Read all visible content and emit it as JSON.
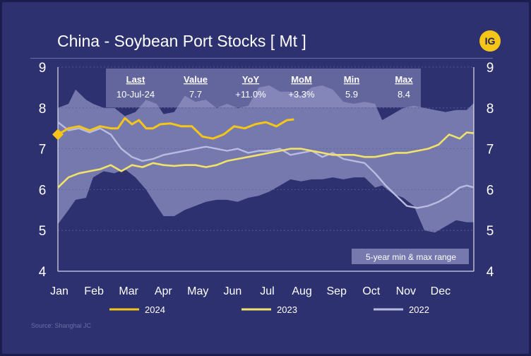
{
  "header": {
    "title": "China - Soybean Port Stocks [ Mt ]",
    "logo_text": "IG"
  },
  "stats": {
    "headers": [
      "Last",
      "Value",
      "YoY",
      "MoM",
      "Min",
      "Max"
    ],
    "values": [
      "10-Jul-24",
      "7.7",
      "+11.0%",
      "+3.3%",
      "5.9",
      "8.4"
    ]
  },
  "range_label": "5-year min & max range",
  "source": "Source: Shanghai JC",
  "colors": {
    "c2024": "#f5c518",
    "c2023": "#f0e26a",
    "c2022": "#b9bce0",
    "band": "#8f92c2",
    "bg": "#2d3170"
  },
  "chart_data": {
    "type": "line",
    "title": "China - Soybean Port Stocks [ Mt ]",
    "ylim": [
      4,
      9
    ],
    "y_ticks": [
      4,
      5,
      6,
      7,
      8,
      9
    ],
    "x_range": [
      0,
      11.8
    ],
    "x_ticks": [
      "Jan",
      "Feb",
      "Mar",
      "Apr",
      "May",
      "Jun",
      "Jul",
      "Aug",
      "Sep",
      "Oct",
      "Nov",
      "Dec"
    ],
    "range_band": {
      "name": "5-year min & max range",
      "x": [
        0,
        0.3,
        0.5,
        0.8,
        1.0,
        1.3,
        1.6,
        1.9,
        2.2,
        2.5,
        2.8,
        3.0,
        3.3,
        3.6,
        3.9,
        4.2,
        4.5,
        4.8,
        5.1,
        5.4,
        5.7,
        6.0,
        6.3,
        6.6,
        6.9,
        7.2,
        7.5,
        7.8,
        8.1,
        8.4,
        8.7,
        9.0,
        9.2,
        9.5,
        9.8,
        10.1,
        10.4,
        10.7,
        11.0,
        11.3,
        11.6,
        11.8
      ],
      "max": [
        8.0,
        8.1,
        8.45,
        8.2,
        8.1,
        8.0,
        8.0,
        7.8,
        7.9,
        8.2,
        8.1,
        7.85,
        7.9,
        8.3,
        8.15,
        8.2,
        8.0,
        8.1,
        8.0,
        8.05,
        8.5,
        8.55,
        8.4,
        8.4,
        8.3,
        8.5,
        8.55,
        8.45,
        8.15,
        8.1,
        8.15,
        8.1,
        7.7,
        7.85,
        8.0,
        8.05,
        8.0,
        7.95,
        7.9,
        7.95,
        7.95,
        8.12
      ],
      "min": [
        5.15,
        5.5,
        5.75,
        5.8,
        6.3,
        6.45,
        6.4,
        6.5,
        6.3,
        6.0,
        5.6,
        5.35,
        5.35,
        5.5,
        5.6,
        5.7,
        5.75,
        5.75,
        5.7,
        5.8,
        5.85,
        5.95,
        6.1,
        6.25,
        6.2,
        6.25,
        6.25,
        6.3,
        6.25,
        6.3,
        6.3,
        6.05,
        6.1,
        5.9,
        5.8,
        5.6,
        5.0,
        4.95,
        5.1,
        5.25,
        5.2,
        5.2
      ]
    },
    "series": [
      {
        "name": "2024",
        "x": [
          0,
          0.3,
          0.6,
          0.9,
          1.2,
          1.5,
          1.7,
          1.9,
          2.1,
          2.3,
          2.5,
          2.7,
          2.9,
          3.2,
          3.5,
          3.8,
          4.1,
          4.4,
          4.7,
          5.0,
          5.3,
          5.6,
          5.9,
          6.2,
          6.5,
          6.7
        ],
        "values": [
          7.35,
          7.5,
          7.55,
          7.45,
          7.55,
          7.5,
          7.5,
          7.75,
          7.6,
          7.7,
          7.5,
          7.5,
          7.6,
          7.62,
          7.55,
          7.55,
          7.3,
          7.25,
          7.35,
          7.55,
          7.5,
          7.6,
          7.65,
          7.55,
          7.7,
          7.72
        ]
      },
      {
        "name": "2023",
        "x": [
          0,
          0.3,
          0.6,
          0.9,
          1.2,
          1.5,
          1.8,
          2.1,
          2.4,
          2.7,
          3.0,
          3.3,
          3.6,
          3.9,
          4.2,
          4.5,
          4.8,
          5.1,
          5.4,
          5.7,
          6.0,
          6.3,
          6.6,
          6.9,
          7.2,
          7.5,
          7.8,
          8.1,
          8.4,
          8.7,
          9.0,
          9.3,
          9.6,
          9.9,
          10.2,
          10.5,
          10.8,
          11.1,
          11.4,
          11.6,
          11.8
        ],
        "values": [
          6.05,
          6.3,
          6.4,
          6.45,
          6.5,
          6.6,
          6.45,
          6.6,
          6.55,
          6.65,
          6.6,
          6.58,
          6.6,
          6.6,
          6.55,
          6.6,
          6.7,
          6.75,
          6.8,
          6.85,
          6.9,
          6.95,
          7.0,
          7.0,
          6.95,
          6.9,
          6.85,
          6.85,
          6.85,
          6.8,
          6.8,
          6.85,
          6.9,
          6.9,
          6.95,
          7.0,
          7.1,
          7.35,
          7.25,
          7.4,
          7.38
        ]
      },
      {
        "name": "2022",
        "x": [
          0,
          0.3,
          0.6,
          0.9,
          1.2,
          1.5,
          1.8,
          2.1,
          2.4,
          2.7,
          3.0,
          3.3,
          3.6,
          3.9,
          4.2,
          4.5,
          4.8,
          5.1,
          5.4,
          5.7,
          6.0,
          6.3,
          6.6,
          6.9,
          7.2,
          7.5,
          7.8,
          8.1,
          8.4,
          8.7,
          9.0,
          9.3,
          9.6,
          9.9,
          10.2,
          10.5,
          10.8,
          11.1,
          11.4,
          11.6,
          11.8
        ],
        "values": [
          7.65,
          7.45,
          7.5,
          7.4,
          7.5,
          7.35,
          7.0,
          6.8,
          6.7,
          6.75,
          6.85,
          6.9,
          6.95,
          7.0,
          7.05,
          7.0,
          6.95,
          7.0,
          6.9,
          6.95,
          6.95,
          7.0,
          6.85,
          6.9,
          6.95,
          6.8,
          6.9,
          6.75,
          6.7,
          6.65,
          6.4,
          6.1,
          5.85,
          5.6,
          5.55,
          5.6,
          5.7,
          5.85,
          6.05,
          6.1,
          6.05
        ]
      }
    ],
    "marker": {
      "series": "2024",
      "x": 0,
      "y": 7.35,
      "shape": "diamond"
    },
    "legend": [
      "2024",
      "2023",
      "2022"
    ]
  }
}
